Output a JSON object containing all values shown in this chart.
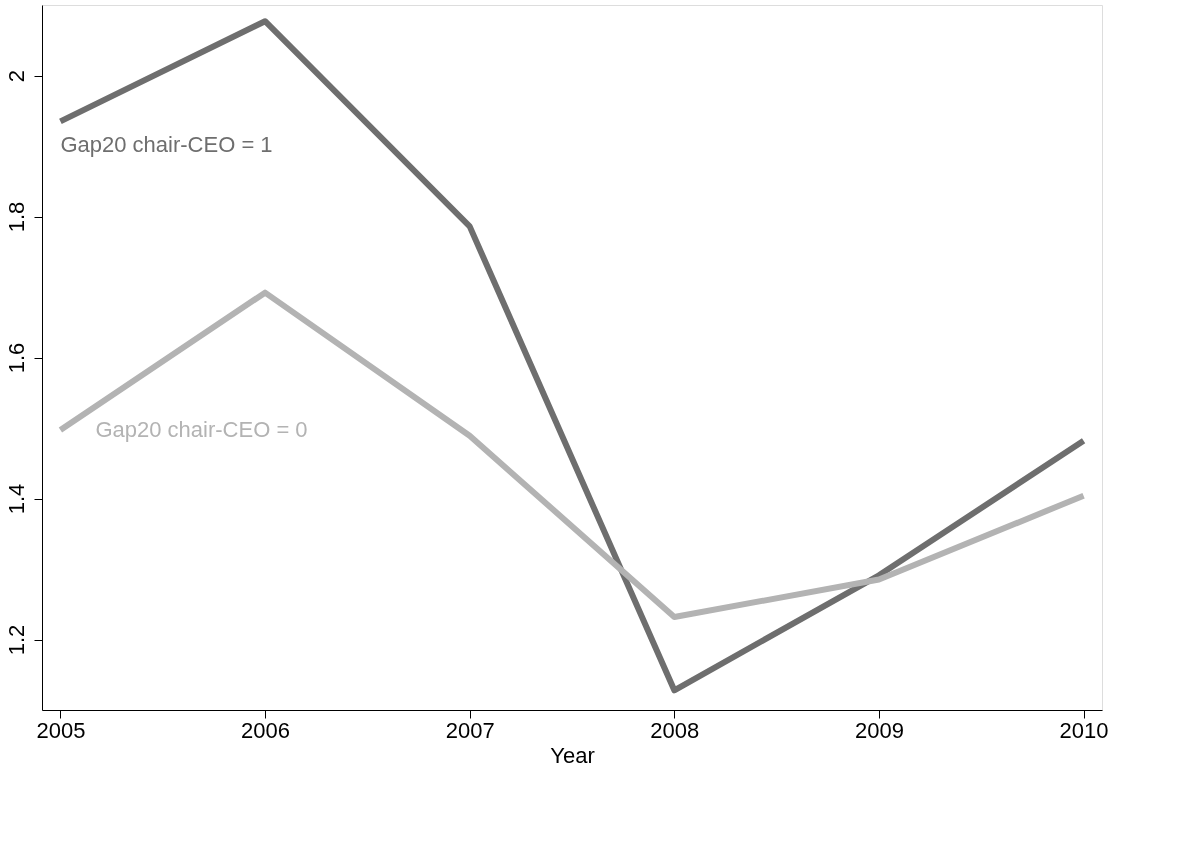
{
  "chart_data": {
    "type": "line",
    "xlabel": "Year",
    "x": [
      2005,
      2006,
      2007,
      2008,
      2009,
      2010
    ],
    "series": [
      {
        "name": "Gap20 chair-CEO = 1",
        "color": "#6e6e6e",
        "values": [
          1.935,
          2.077,
          1.786,
          1.128,
          1.291,
          1.482
        ]
      },
      {
        "name": "Gap20 chair-CEO = 0",
        "color": "#b3b3b3",
        "values": [
          1.497,
          1.692,
          1.489,
          1.232,
          1.285,
          1.404
        ]
      }
    ],
    "xlim": [
      2004.91,
      2010.09
    ],
    "xticks": [
      2005,
      2006,
      2007,
      2008,
      2009,
      2010
    ],
    "ylim": [
      1.1,
      2.1
    ],
    "yticks": [
      1.2,
      1.4,
      1.6,
      1.8,
      2
    ],
    "grid": false,
    "legend": false,
    "marker": "none",
    "line_style": "solid"
  }
}
